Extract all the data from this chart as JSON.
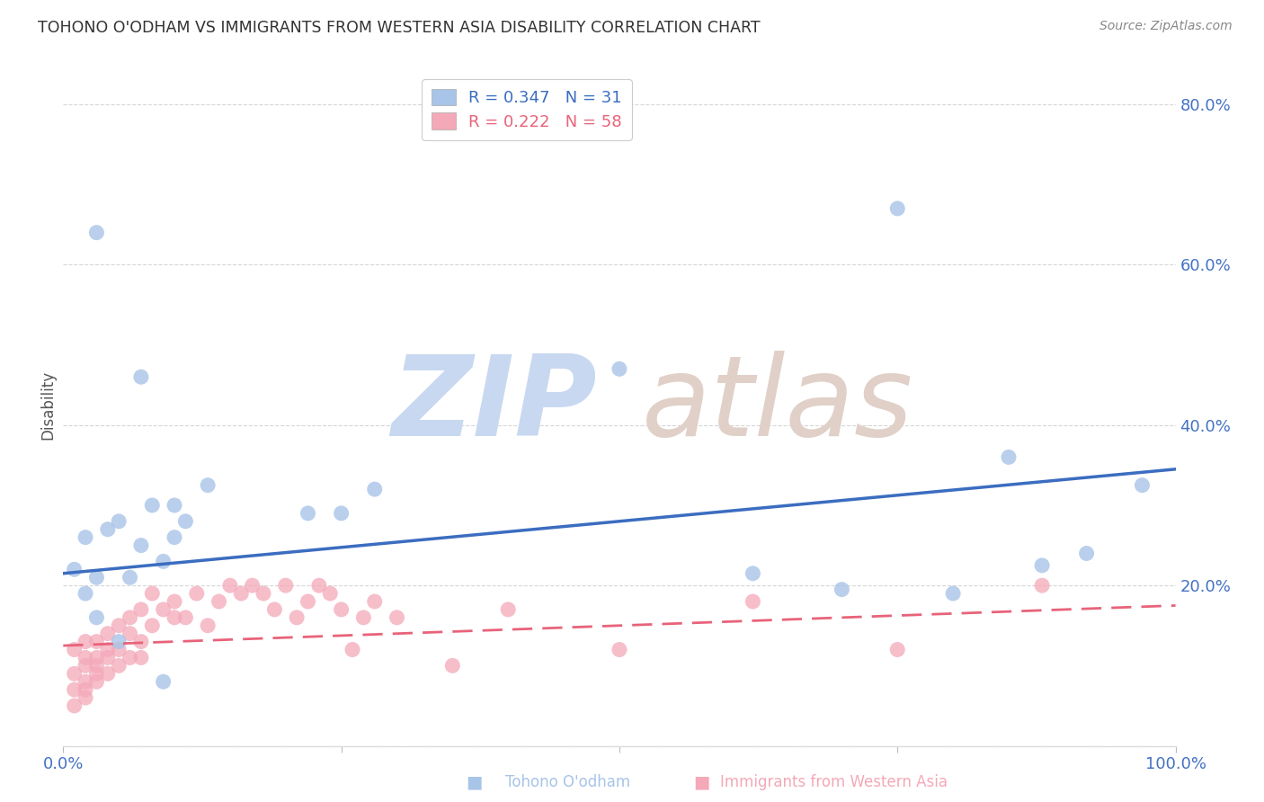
{
  "title": "TOHONO O'ODHAM VS IMMIGRANTS FROM WESTERN ASIA DISABILITY CORRELATION CHART",
  "source": "Source: ZipAtlas.com",
  "ylabel": "Disability",
  "blue_R": 0.347,
  "blue_N": 31,
  "pink_R": 0.222,
  "pink_N": 58,
  "xlim": [
    0.0,
    1.0
  ],
  "ylim": [
    0.0,
    0.85
  ],
  "blue_line_x0": 0.0,
  "blue_line_y0": 0.215,
  "blue_line_x1": 1.0,
  "blue_line_y1": 0.345,
  "pink_line_x0": 0.0,
  "pink_line_y0": 0.125,
  "pink_line_x1": 1.0,
  "pink_line_y1": 0.175,
  "blue_scatter_x": [
    0.01,
    0.02,
    0.02,
    0.03,
    0.03,
    0.04,
    0.05,
    0.05,
    0.06,
    0.07,
    0.08,
    0.09,
    0.1,
    0.1,
    0.11,
    0.13,
    0.22,
    0.25,
    0.28,
    0.5,
    0.62,
    0.7,
    0.8,
    0.85,
    0.88,
    0.92,
    0.97,
    0.03,
    0.07,
    0.09,
    0.75
  ],
  "blue_scatter_y": [
    0.22,
    0.26,
    0.19,
    0.21,
    0.16,
    0.27,
    0.28,
    0.13,
    0.21,
    0.25,
    0.3,
    0.23,
    0.26,
    0.3,
    0.28,
    0.325,
    0.29,
    0.29,
    0.32,
    0.47,
    0.215,
    0.195,
    0.19,
    0.36,
    0.225,
    0.24,
    0.325,
    0.64,
    0.46,
    0.08,
    0.67
  ],
  "pink_scatter_x": [
    0.01,
    0.01,
    0.01,
    0.01,
    0.02,
    0.02,
    0.02,
    0.02,
    0.02,
    0.02,
    0.03,
    0.03,
    0.03,
    0.03,
    0.03,
    0.04,
    0.04,
    0.04,
    0.04,
    0.05,
    0.05,
    0.05,
    0.06,
    0.06,
    0.06,
    0.07,
    0.07,
    0.07,
    0.08,
    0.08,
    0.09,
    0.1,
    0.1,
    0.11,
    0.12,
    0.13,
    0.14,
    0.15,
    0.16,
    0.17,
    0.18,
    0.19,
    0.2,
    0.21,
    0.22,
    0.23,
    0.24,
    0.25,
    0.26,
    0.27,
    0.28,
    0.3,
    0.35,
    0.4,
    0.5,
    0.62,
    0.75,
    0.88
  ],
  "pink_scatter_y": [
    0.05,
    0.07,
    0.09,
    0.12,
    0.06,
    0.08,
    0.1,
    0.13,
    0.11,
    0.07,
    0.09,
    0.11,
    0.13,
    0.08,
    0.1,
    0.14,
    0.11,
    0.09,
    0.12,
    0.15,
    0.12,
    0.1,
    0.16,
    0.11,
    0.14,
    0.17,
    0.13,
    0.11,
    0.19,
    0.15,
    0.17,
    0.18,
    0.16,
    0.16,
    0.19,
    0.15,
    0.18,
    0.2,
    0.19,
    0.2,
    0.19,
    0.17,
    0.2,
    0.16,
    0.18,
    0.2,
    0.19,
    0.17,
    0.12,
    0.16,
    0.18,
    0.16,
    0.1,
    0.17,
    0.12,
    0.18,
    0.12,
    0.2
  ],
  "blue_line_color": "#3B6DC0",
  "pink_line_color": "#E8637A",
  "blue_scatter_color": "#A8C4E8",
  "pink_scatter_color": "#F4A8B8",
  "background_color": "#ffffff",
  "grid_color": "#cccccc",
  "title_color": "#333333",
  "axis_color": "#4472C4",
  "watermark_zip_color": "#C8D8F0",
  "watermark_atlas_color": "#E0D0C8"
}
